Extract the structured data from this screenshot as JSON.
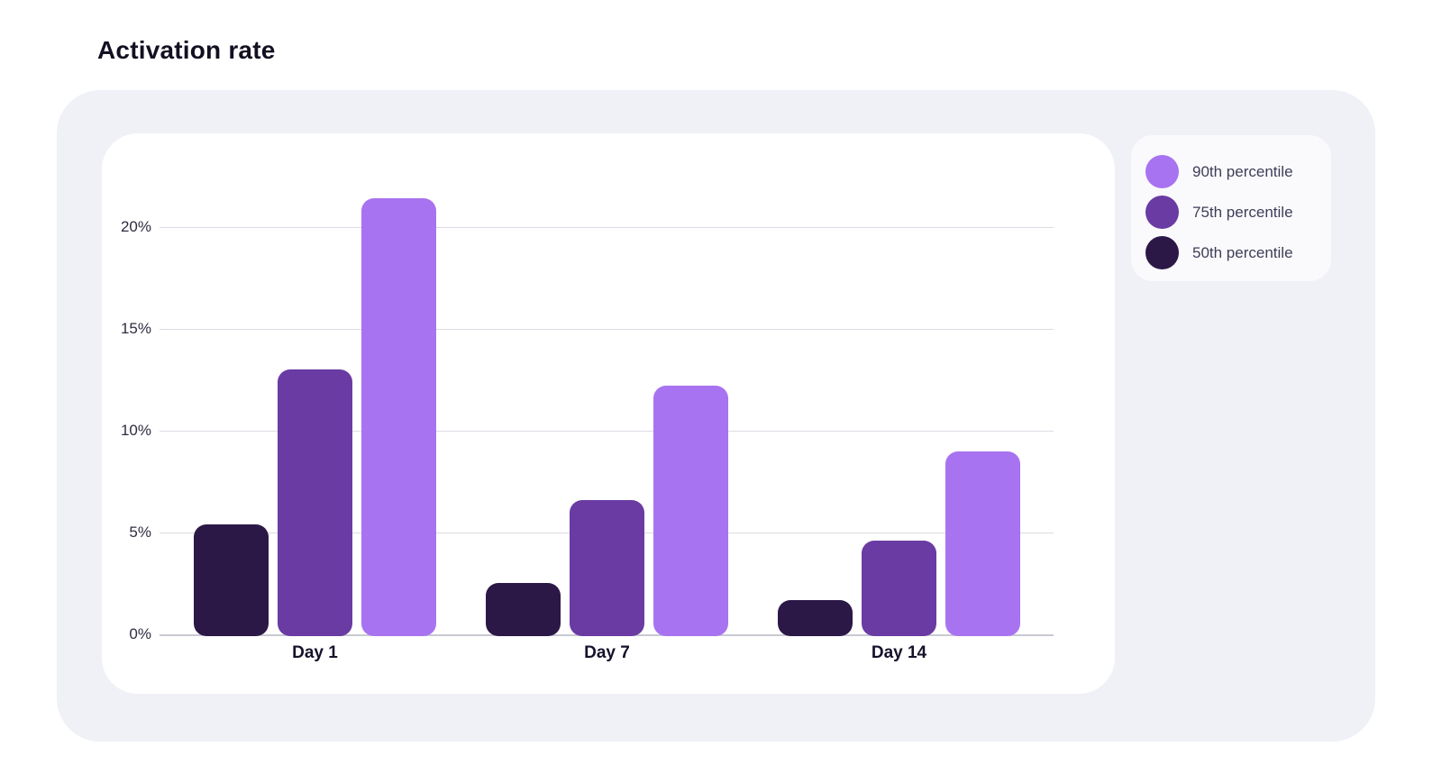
{
  "title": "Activation rate",
  "legend": {
    "items": [
      {
        "label": "90th percentile",
        "color": "#A873F0"
      },
      {
        "label": "75th percentile",
        "color": "#6A3BA3"
      },
      {
        "label": "50th percentile",
        "color": "#2B1847"
      }
    ]
  },
  "chart_data": {
    "type": "bar",
    "title": "Activation rate",
    "xlabel": "",
    "ylabel": "",
    "categories": [
      "Day 1",
      "Day 7",
      "Day 14"
    ],
    "series": [
      {
        "name": "50th percentile",
        "color": "#2B1847",
        "values": [
          5.4,
          2.5,
          1.7
        ]
      },
      {
        "name": "75th percentile",
        "color": "#6A3BA3",
        "values": [
          13.0,
          6.6,
          4.6
        ]
      },
      {
        "name": "90th percentile",
        "color": "#A873F0",
        "values": [
          21.4,
          12.2,
          9.0
        ]
      }
    ],
    "ylim": [
      0,
      22
    ],
    "yticks": [
      0,
      5,
      10,
      15,
      20
    ],
    "ytick_labels": [
      "0%",
      "5%",
      "10%",
      "15%",
      "20%"
    ],
    "grid": true,
    "legend_position": "outside-top-right",
    "legend_order": [
      "90th percentile",
      "75th percentile",
      "50th percentile"
    ]
  },
  "colors": {
    "page_background": "#FFFFFF",
    "panel_background": "#EFF1F6",
    "card_background": "#FFFFFF",
    "legend_card_background": "#FAFAFD",
    "gridline": "#DCDCE4",
    "baseline": "#C9C9D3",
    "title_text": "#141022",
    "tick_text": "#2D2D42",
    "category_text": "#16112B",
    "legend_text": "#3D3D56"
  }
}
